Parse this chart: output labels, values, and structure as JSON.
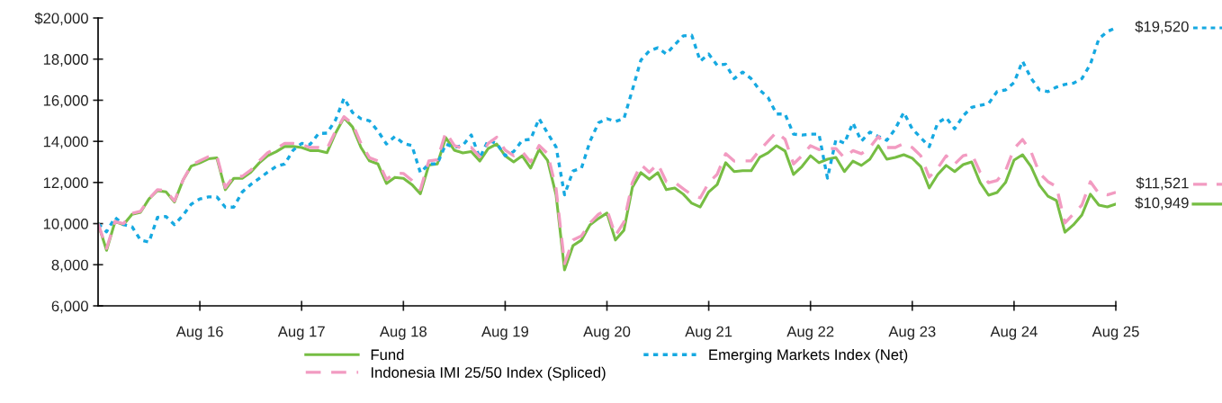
{
  "chart_data": {
    "type": "line",
    "x": [
      "2015-08",
      "2015-09",
      "2015-10",
      "2015-11",
      "2015-12",
      "2016-01",
      "2016-02",
      "2016-03",
      "2016-04",
      "2016-05",
      "2016-06",
      "2016-07",
      "2016-08",
      "2016-09",
      "2016-10",
      "2016-11",
      "2016-12",
      "2017-01",
      "2017-02",
      "2017-03",
      "2017-04",
      "2017-05",
      "2017-06",
      "2017-07",
      "2017-08",
      "2017-09",
      "2017-10",
      "2017-11",
      "2017-12",
      "2018-01",
      "2018-02",
      "2018-03",
      "2018-04",
      "2018-05",
      "2018-06",
      "2018-07",
      "2018-08",
      "2018-09",
      "2018-10",
      "2018-11",
      "2018-12",
      "2019-01",
      "2019-02",
      "2019-03",
      "2019-04",
      "2019-05",
      "2019-06",
      "2019-07",
      "2019-08",
      "2019-09",
      "2019-10",
      "2019-11",
      "2019-12",
      "2020-01",
      "2020-02",
      "2020-03",
      "2020-04",
      "2020-05",
      "2020-06",
      "2020-07",
      "2020-08",
      "2020-09",
      "2020-10",
      "2020-11",
      "2020-12",
      "2021-01",
      "2021-02",
      "2021-03",
      "2021-04",
      "2021-05",
      "2021-06",
      "2021-07",
      "2021-08",
      "2021-09",
      "2021-10",
      "2021-11",
      "2021-12",
      "2022-01",
      "2022-02",
      "2022-03",
      "2022-04",
      "2022-05",
      "2022-06",
      "2022-07",
      "2022-08",
      "2022-09",
      "2022-10",
      "2022-11",
      "2022-12",
      "2023-01",
      "2023-02",
      "2023-03",
      "2023-04",
      "2023-05",
      "2023-06",
      "2023-07",
      "2023-08",
      "2023-09",
      "2023-10",
      "2023-11",
      "2023-12",
      "2024-01",
      "2024-02",
      "2024-03",
      "2024-04",
      "2024-05",
      "2024-06",
      "2024-07",
      "2024-08",
      "2024-09",
      "2024-10",
      "2024-11",
      "2024-12",
      "2025-01",
      "2025-02",
      "2025-03",
      "2025-04",
      "2025-05",
      "2025-06",
      "2025-07",
      "2025-08"
    ],
    "series": [
      {
        "name": "Fund",
        "color": "#76bd43",
        "line_style": "solid",
        "values": [
          10000,
          8700,
          10100,
          9950,
          10450,
          10550,
          11200,
          11600,
          11550,
          11050,
          12100,
          12800,
          12950,
          13150,
          13200,
          11650,
          12200,
          12200,
          12500,
          12950,
          13300,
          13500,
          13750,
          13750,
          13700,
          13550,
          13550,
          13450,
          14400,
          15150,
          14700,
          13700,
          13050,
          12900,
          11950,
          12250,
          12200,
          11900,
          11450,
          12850,
          12900,
          14180,
          13570,
          13440,
          13500,
          13040,
          13650,
          13870,
          13300,
          13000,
          13300,
          12700,
          13610,
          13070,
          11400,
          7750,
          8930,
          9200,
          9940,
          10250,
          10510,
          9200,
          9680,
          11770,
          12480,
          12160,
          12480,
          11650,
          11730,
          11430,
          10990,
          10810,
          11540,
          11900,
          12960,
          12530,
          12570,
          12570,
          13220,
          13440,
          13790,
          13530,
          12390,
          12780,
          13300,
          12960,
          13130,
          13220,
          12530,
          13040,
          12830,
          13130,
          13790,
          13130,
          13220,
          13350,
          13180,
          12780,
          11730,
          12390,
          12830,
          12530,
          12870,
          13000,
          12000,
          11380,
          11510,
          12000,
          13090,
          13350,
          12780,
          11870,
          11330,
          11120,
          9580,
          9940,
          10420,
          11430,
          10900,
          10810,
          10949
        ],
        "value_labels": [
          null,
          null,
          null,
          null,
          null,
          null,
          null,
          null,
          null,
          null,
          null,
          null,
          null,
          null,
          null,
          null,
          null,
          null,
          null,
          null,
          null,
          null,
          null,
          null,
          null,
          null,
          null,
          null,
          null,
          null,
          null,
          null,
          null,
          null,
          null,
          null,
          null,
          null,
          null,
          null,
          null,
          null,
          null,
          null,
          null,
          null,
          null,
          null,
          null,
          null,
          null,
          null,
          null,
          null,
          null,
          null,
          null,
          null,
          null,
          null,
          null,
          null,
          null,
          null,
          null,
          null,
          null,
          null,
          null,
          null,
          null,
          null,
          null,
          null,
          null,
          null,
          null,
          null,
          null,
          null,
          null,
          null,
          null,
          null,
          null,
          null,
          null,
          null,
          null,
          null,
          null,
          null,
          null,
          null,
          null,
          null,
          null,
          null,
          null,
          null,
          null,
          null,
          null,
          null,
          null,
          null,
          null,
          null,
          null,
          null,
          null,
          null,
          null,
          null,
          null,
          null,
          null,
          null,
          null,
          null,
          "$10,949"
        ]
      },
      {
        "name": "Emerging Markets Index (Net)",
        "color": "#16a9e1",
        "line_style": "dotted",
        "values": [
          10000,
          9600,
          10300,
          9950,
          9850,
          9200,
          9100,
          10300,
          10350,
          9950,
          10400,
          10950,
          11200,
          11300,
          11300,
          10800,
          10800,
          11540,
          11900,
          12200,
          12500,
          12780,
          12900,
          13570,
          13900,
          13850,
          14380,
          14400,
          15040,
          16100,
          15400,
          15100,
          15000,
          14500,
          13870,
          14240,
          13900,
          13800,
          12480,
          12900,
          12900,
          13870,
          13700,
          13800,
          14310,
          13200,
          14050,
          13900,
          13300,
          13500,
          14050,
          14100,
          15100,
          14400,
          13730,
          11400,
          12560,
          12700,
          14000,
          14900,
          15100,
          14970,
          15100,
          16500,
          17950,
          18400,
          18550,
          18250,
          18700,
          19130,
          19160,
          17900,
          18250,
          17700,
          17750,
          17050,
          17370,
          17050,
          16500,
          16130,
          15330,
          15330,
          14350,
          14310,
          14350,
          14350,
          12210,
          14090,
          13910,
          14900,
          14010,
          14450,
          14240,
          14050,
          14610,
          15410,
          14610,
          14180,
          13740,
          14900,
          15150,
          14610,
          15240,
          15650,
          15750,
          15840,
          16420,
          16500,
          16860,
          17900,
          17070,
          16500,
          16420,
          16640,
          16770,
          16830,
          17050,
          17750,
          18990,
          19340,
          19520
        ],
        "value_labels": [
          null,
          null,
          null,
          null,
          null,
          null,
          null,
          null,
          null,
          null,
          null,
          null,
          null,
          null,
          null,
          null,
          null,
          null,
          null,
          null,
          null,
          null,
          null,
          null,
          null,
          null,
          null,
          null,
          null,
          null,
          null,
          null,
          null,
          null,
          null,
          null,
          null,
          null,
          null,
          null,
          null,
          null,
          null,
          null,
          null,
          null,
          null,
          null,
          null,
          null,
          null,
          null,
          null,
          null,
          null,
          null,
          null,
          null,
          null,
          null,
          null,
          null,
          null,
          null,
          null,
          null,
          null,
          null,
          null,
          null,
          null,
          null,
          null,
          null,
          null,
          null,
          null,
          null,
          null,
          null,
          null,
          null,
          null,
          null,
          null,
          null,
          null,
          null,
          null,
          null,
          null,
          null,
          null,
          null,
          null,
          null,
          null,
          null,
          null,
          null,
          null,
          null,
          null,
          null,
          null,
          null,
          null,
          null,
          null,
          null,
          null,
          null,
          null,
          null,
          null,
          null,
          null,
          null,
          null,
          null,
          "$19,520"
        ]
      },
      {
        "name": "Indonesia IMI 25/50 Index (Spliced)",
        "color": "#f29bc1",
        "line_style": "dashed",
        "values": [
          10000,
          8800,
          10100,
          10000,
          10500,
          10600,
          11200,
          11650,
          11600,
          11100,
          12100,
          12850,
          13050,
          13250,
          13300,
          11750,
          12300,
          12300,
          12600,
          13050,
          13450,
          13650,
          13900,
          13900,
          13850,
          13700,
          13700,
          13650,
          14500,
          15200,
          14850,
          13900,
          13200,
          13050,
          12150,
          12450,
          12440,
          12100,
          11650,
          13050,
          13100,
          14450,
          13800,
          13650,
          13700,
          13250,
          13900,
          14200,
          13570,
          13300,
          13500,
          13000,
          13800,
          13400,
          11700,
          8050,
          9200,
          9400,
          10030,
          10450,
          10680,
          9420,
          10070,
          12000,
          12870,
          12500,
          12900,
          12040,
          12000,
          11690,
          11400,
          11250,
          11990,
          12400,
          13400,
          13040,
          13050,
          13050,
          13570,
          14010,
          14450,
          14100,
          12900,
          13300,
          13790,
          13600,
          13650,
          13650,
          13200,
          13550,
          13400,
          13700,
          14240,
          13700,
          13700,
          13900,
          13700,
          13300,
          12260,
          12700,
          13300,
          12900,
          13300,
          13400,
          12500,
          11990,
          12100,
          12570,
          13650,
          14090,
          13500,
          12450,
          12040,
          11800,
          10030,
          10470,
          10900,
          12040,
          11470,
          11400,
          11521
        ],
        "value_labels": [
          null,
          null,
          null,
          null,
          null,
          null,
          null,
          null,
          null,
          null,
          null,
          null,
          null,
          null,
          null,
          null,
          null,
          null,
          null,
          null,
          null,
          null,
          null,
          null,
          null,
          null,
          null,
          null,
          null,
          null,
          null,
          null,
          null,
          null,
          null,
          null,
          null,
          null,
          null,
          null,
          null,
          null,
          null,
          null,
          null,
          null,
          null,
          null,
          null,
          null,
          null,
          null,
          null,
          null,
          null,
          null,
          null,
          null,
          null,
          null,
          null,
          null,
          null,
          null,
          null,
          null,
          null,
          null,
          null,
          null,
          null,
          null,
          null,
          null,
          null,
          null,
          null,
          null,
          null,
          null,
          null,
          null,
          null,
          null,
          null,
          null,
          null,
          null,
          null,
          null,
          null,
          null,
          null,
          null,
          null,
          null,
          null,
          null,
          null,
          null,
          null,
          null,
          null,
          null,
          null,
          null,
          null,
          null,
          null,
          null,
          null,
          null,
          null,
          null,
          null,
          null,
          null,
          null,
          null,
          null,
          "$11,521"
        ]
      }
    ],
    "xlim": [
      "2015-08",
      "2025-08"
    ],
    "xticks": [
      {
        "value": "2016-08",
        "label": "Aug 16"
      },
      {
        "value": "2017-08",
        "label": "Aug 17"
      },
      {
        "value": "2018-08",
        "label": "Aug 18"
      },
      {
        "value": "2019-08",
        "label": "Aug 19"
      },
      {
        "value": "2020-08",
        "label": "Aug 20"
      },
      {
        "value": "2021-08",
        "label": "Aug 21"
      },
      {
        "value": "2022-08",
        "label": "Aug 22"
      },
      {
        "value": "2023-08",
        "label": "Aug 23"
      },
      {
        "value": "2024-08",
        "label": "Aug 24"
      },
      {
        "value": "2025-08",
        "label": "Aug 25"
      }
    ],
    "ylim": [
      6000,
      20000
    ],
    "yticks": [
      {
        "value": 6000,
        "label": "6,000"
      },
      {
        "value": 8000,
        "label": "8,000"
      },
      {
        "value": 10000,
        "label": "10,000"
      },
      {
        "value": 12000,
        "label": "12,000"
      },
      {
        "value": 14000,
        "label": "14,000"
      },
      {
        "value": 16000,
        "label": "16,000"
      },
      {
        "value": 18000,
        "label": "18,000"
      },
      {
        "value": 20000,
        "label": "$20,000"
      }
    ],
    "grid": false,
    "legend": "bottom"
  }
}
